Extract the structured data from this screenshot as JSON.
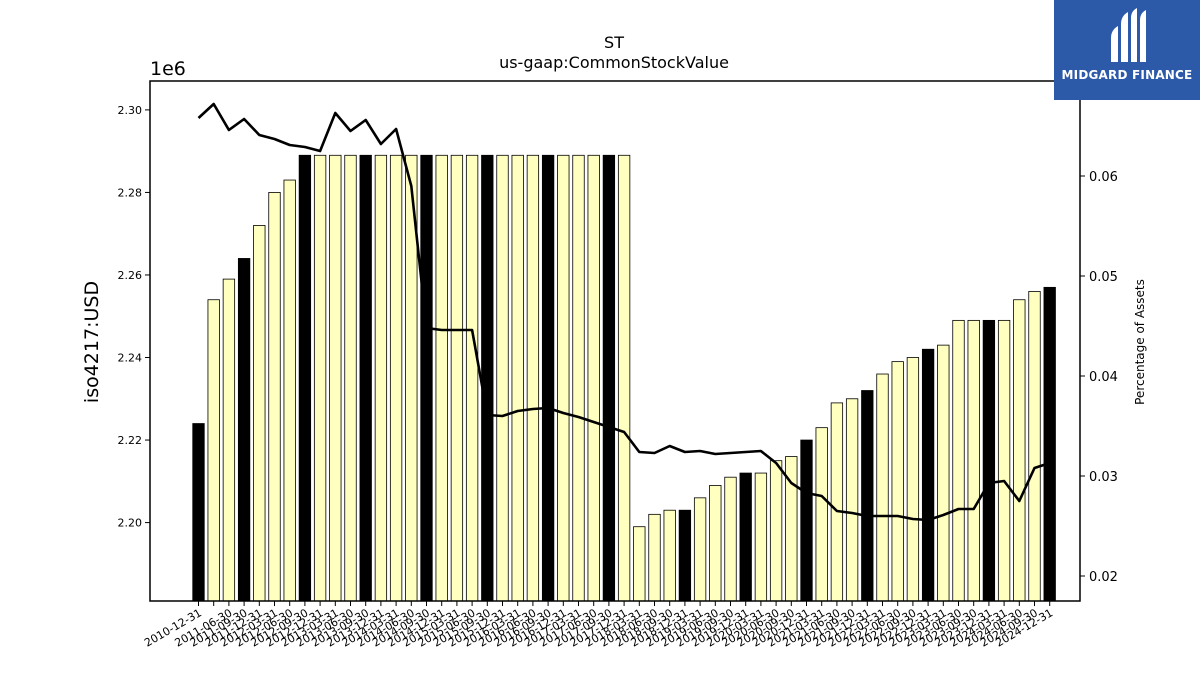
{
  "chart_data": {
    "type": "bar",
    "title": "ST",
    "subtitle": "us-gaap:CommonStockValue",
    "ylabel": "iso4217:USD",
    "ylabel_right": "Percentage of Assets",
    "y_offset_label": "1e6",
    "ylim": [
      2181000,
      2307000
    ],
    "y2lim": [
      0.0175,
      0.0695
    ],
    "yticks": [
      "2.20",
      "2.22",
      "2.24",
      "2.26",
      "2.28",
      "2.30"
    ],
    "y2ticks": [
      "0.02",
      "0.03",
      "0.04",
      "0.05",
      "0.06"
    ],
    "categories": [
      "2010-12-31",
      "2011-03-31",
      "2011-06-30",
      "2011-09-30",
      "2011-12-31",
      "2012-03-31",
      "2012-06-30",
      "2012-09-30",
      "2012-12-31",
      "2013-03-31",
      "2013-06-30",
      "2013-09-30",
      "2013-12-31",
      "2014-03-31",
      "2014-06-30",
      "2014-09-30",
      "2014-12-31",
      "2015-03-31",
      "2015-06-30",
      "2015-09-30",
      "2015-12-31",
      "2016-03-31",
      "2016-06-30",
      "2016-09-30",
      "2016-12-31",
      "2017-03-31",
      "2017-06-30",
      "2017-09-30",
      "2017-12-31",
      "2018-03-31",
      "2018-06-30",
      "2018-09-30",
      "2018-12-31",
      "2019-03-31",
      "2019-06-30",
      "2019-09-30",
      "2019-12-31",
      "2020-03-31",
      "2020-06-30",
      "2020-09-30",
      "2020-12-31",
      "2021-03-31",
      "2021-06-30",
      "2021-09-30",
      "2021-12-31",
      "2022-03-31",
      "2022-06-30",
      "2022-09-30",
      "2022-12-31",
      "2023-03-31",
      "2023-06-30",
      "2023-09-30",
      "2023-12-31",
      "2024-03-31",
      "2024-06-30",
      "2024-09-30",
      "2024-12-31"
    ],
    "visible_xtick_labels": [
      "2010-12-31",
      "2011-06-30",
      "2011-09-30",
      "2011-12-31",
      "2012-03-31",
      "2012-06-30",
      "2012-09-30",
      "2012-12-31",
      "2013-03-31",
      "2013-06-30",
      "2013-09-30",
      "2013-12-31",
      "2014-03-31",
      "2014-06-30",
      "2014-09-30",
      "2014-12-31",
      "2015-03-31",
      "2015-06-30",
      "2015-09-30",
      "2015-12-31",
      "2016-03-31",
      "2016-06-30",
      "2016-09-30",
      "2016-12-31",
      "2017-03-31",
      "2017-06-30",
      "2017-09-30",
      "2017-12-31",
      "2018-03-31",
      "2018-06-30",
      "2018-09-30",
      "2018-12-31",
      "2019-03-31",
      "2019-06-30",
      "2019-09-30",
      "2019-12-31",
      "2020-03-31",
      "2020-06-30",
      "2020-09-30",
      "2020-12-31",
      "2021-03-31",
      "2021-06-30",
      "2021-09-30",
      "2021-12-31",
      "2022-03-31",
      "2022-06-30",
      "2022-09-30",
      "2022-12-31",
      "2023-03-31",
      "2023-06-30",
      "2023-09-30",
      "2023-12-31",
      "2024-03-31",
      "2024-06-30",
      "2024-09-30",
      "2024-12-31"
    ],
    "series": [
      {
        "type": "bar",
        "values": [
          2224000,
          2254000,
          2259000,
          2264000,
          2272000,
          2280000,
          2283000,
          2289000,
          2289000,
          2289000,
          2289000,
          2289000,
          2289000,
          2289000,
          2289000,
          2289000,
          2289000,
          2289000,
          2289000,
          2289000,
          2289000,
          2289000,
          2289000,
          2289000,
          2289000,
          2289000,
          2289000,
          2289000,
          2289000,
          2199000,
          2202000,
          2203000,
          2203000,
          2206000,
          2209000,
          2211000,
          2212000,
          2212000,
          2215000,
          2216000,
          2220000,
          2223000,
          2229000,
          2230000,
          2232000,
          2236000,
          2239000,
          2240000,
          2242000,
          2243000,
          2249000,
          2249000,
          2249000,
          2249000,
          2254000,
          2256000,
          2257000
        ],
        "year_end_flags": [
          1,
          0,
          0,
          1,
          0,
          0,
          0,
          1,
          0,
          0,
          0,
          1,
          0,
          0,
          0,
          1,
          0,
          0,
          0,
          1,
          0,
          0,
          0,
          1,
          0,
          0,
          0,
          1,
          0,
          0,
          0,
          0,
          1,
          0,
          0,
          0,
          1,
          0,
          0,
          0,
          1,
          0,
          0,
          0,
          1,
          0,
          0,
          0,
          1,
          0,
          0,
          0,
          1,
          0,
          0,
          0,
          1
        ]
      },
      {
        "type": "line",
        "axis": "right",
        "values": [
          0.0658,
          0.0672,
          0.0646,
          0.0657,
          0.0641,
          0.0637,
          0.0631,
          0.0629,
          0.0625,
          0.0663,
          0.0645,
          0.0656,
          0.0632,
          0.0647,
          0.059,
          0.0448,
          0.0446,
          0.0446,
          0.0446,
          0.0361,
          0.036,
          0.0365,
          0.0367,
          0.0368,
          0.0363,
          0.0359,
          0.0354,
          0.0349,
          0.0344,
          0.0324,
          0.0323,
          0.033,
          0.0324,
          0.0325,
          0.0322,
          0.0323,
          0.0324,
          0.0325,
          0.0313,
          0.0293,
          0.0283,
          0.028,
          0.0265,
          0.0263,
          0.026,
          0.026,
          0.026,
          0.0257,
          0.0256,
          0.0261,
          0.0267,
          0.0267,
          0.0293,
          0.0295,
          0.0275,
          0.0308,
          0.0313
        ]
      }
    ],
    "colors": {
      "bar_fill": "#ffffc0",
      "bar_year_end": "#000000",
      "bar_edge": "#000000",
      "line": "#000000"
    },
    "grid": false,
    "legend": "none"
  },
  "logo": {
    "text": "MIDGARD FINANCE",
    "colors": {
      "bg": "#2d5aa8",
      "fg": "#ffffff"
    }
  }
}
